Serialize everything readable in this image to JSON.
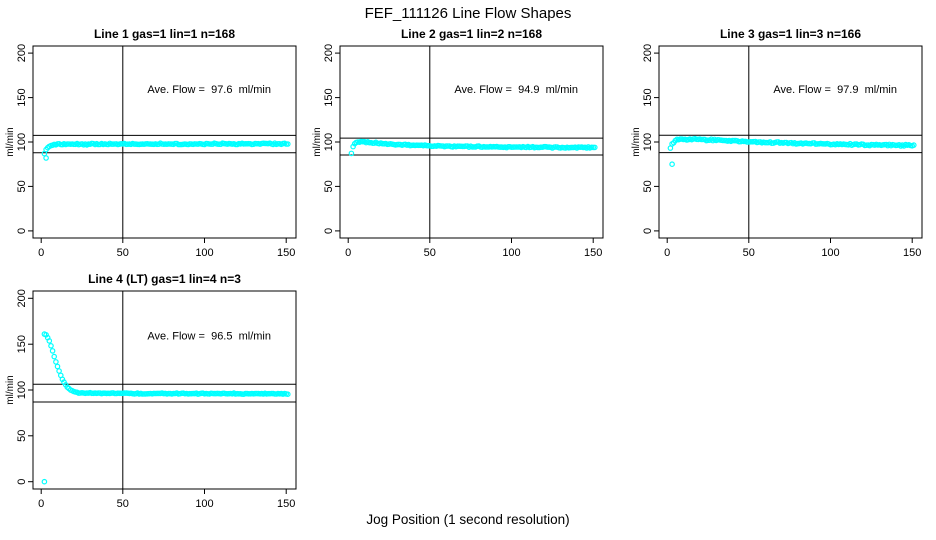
{
  "title": "FEF_111126  Line Flow Shapes",
  "xlabel": "Jog Position (1 second resolution)",
  "colors": {
    "points": "#00FFFF",
    "axis": "#000000",
    "background": "#FFFFFF"
  },
  "chart_data": [
    {
      "type": "scatter",
      "title": "Line 1 gas=1 lin=1 n=168",
      "annotation": "Ave. Flow =  97.6  ml/min",
      "avg_flow_ml_min": 97.6,
      "ylabel": "ml/min",
      "x_ticks": [
        0,
        50,
        100,
        150
      ],
      "y_ticks": [
        0,
        50,
        100,
        150,
        200
      ],
      "xlim": [
        -5,
        156
      ],
      "ylim": [
        -8,
        208
      ],
      "ref_lines_y": [
        107.4,
        87.8
      ],
      "ref_line_x": 50,
      "x_start": 2,
      "x_end": 151,
      "x_step": 1,
      "noise": 0.5,
      "profile": [
        [
          2,
          87.5
        ],
        [
          3,
          91
        ],
        [
          4,
          93.5
        ],
        [
          5,
          95
        ],
        [
          6,
          96
        ],
        [
          8,
          96.9
        ],
        [
          10,
          97.3
        ],
        [
          15,
          97.6
        ],
        [
          20,
          97.7
        ],
        [
          30,
          97.6
        ],
        [
          40,
          97.7
        ],
        [
          50,
          97.6
        ],
        [
          60,
          97.7
        ],
        [
          75,
          97.8
        ],
        [
          90,
          97.7
        ],
        [
          100,
          97.8
        ],
        [
          110,
          97.9
        ],
        [
          125,
          97.9
        ],
        [
          140,
          98
        ],
        [
          151,
          98
        ]
      ],
      "outliers": [
        [
          3,
          82
        ]
      ]
    },
    {
      "type": "scatter",
      "title": "Line 2 gas=1 lin=2 n=168",
      "annotation": "Ave. Flow =  94.9  ml/min",
      "avg_flow_ml_min": 94.9,
      "ylabel": "ml/min",
      "x_ticks": [
        0,
        50,
        100,
        150
      ],
      "y_ticks": [
        0,
        50,
        100,
        150,
        200
      ],
      "xlim": [
        -5,
        156
      ],
      "ylim": [
        -8,
        208
      ],
      "ref_lines_y": [
        104.4,
        85.4
      ],
      "ref_line_x": 50,
      "x_start": 2,
      "x_end": 151,
      "x_step": 1,
      "noise": 0.5,
      "profile": [
        [
          2,
          87
        ],
        [
          3,
          94.5
        ],
        [
          4,
          98
        ],
        [
          5,
          99.5
        ],
        [
          6,
          100.2
        ],
        [
          8,
          100.4
        ],
        [
          10,
          100.2
        ],
        [
          12,
          99.8
        ],
        [
          15,
          99.2
        ],
        [
          20,
          98.4
        ],
        [
          25,
          97.8
        ],
        [
          30,
          97.2
        ],
        [
          40,
          96.3
        ],
        [
          50,
          95.8
        ],
        [
          60,
          95.3
        ],
        [
          75,
          94.8
        ],
        [
          90,
          94.5
        ],
        [
          100,
          94.3
        ],
        [
          115,
          94.1
        ],
        [
          130,
          94
        ],
        [
          151,
          93.9
        ]
      ],
      "outliers": []
    },
    {
      "type": "scatter",
      "title": "Line 3 gas=1 lin=3 n=166",
      "annotation": "Ave. Flow =  97.9  ml/min",
      "avg_flow_ml_min": 97.9,
      "ylabel": "ml/min",
      "x_ticks": [
        0,
        50,
        100,
        150
      ],
      "y_ticks": [
        0,
        50,
        100,
        150,
        200
      ],
      "xlim": [
        -5,
        156
      ],
      "ylim": [
        -8,
        208
      ],
      "ref_lines_y": [
        107.7,
        88.1
      ],
      "ref_line_x": 50,
      "x_start": 2,
      "x_end": 151,
      "x_step": 1,
      "noise": 0.6,
      "profile": [
        [
          2,
          93
        ],
        [
          3,
          97.5
        ],
        [
          4,
          100
        ],
        [
          5,
          101.5
        ],
        [
          6,
          102.3
        ],
        [
          8,
          103
        ],
        [
          10,
          103.2
        ],
        [
          14,
          103.3
        ],
        [
          18,
          103.1
        ],
        [
          22,
          102.8
        ],
        [
          26,
          102.4
        ],
        [
          30,
          102
        ],
        [
          40,
          101.1
        ],
        [
          50,
          100.4
        ],
        [
          60,
          99.7
        ],
        [
          75,
          98.8
        ],
        [
          90,
          98.1
        ],
        [
          100,
          97.7
        ],
        [
          115,
          97.1
        ],
        [
          130,
          96.7
        ],
        [
          140,
          96.5
        ],
        [
          151,
          96.3
        ]
      ],
      "outliers": [
        [
          3,
          75
        ]
      ]
    },
    {
      "type": "scatter",
      "title": "Line 4 (LT) gas=1 lin=4 n=3",
      "annotation": "Ave. Flow =  96.5  ml/min",
      "avg_flow_ml_min": 96.5,
      "ylabel": "ml/min",
      "x_ticks": [
        0,
        50,
        100,
        150
      ],
      "y_ticks": [
        0,
        50,
        100,
        150,
        200
      ],
      "xlim": [
        -5,
        156
      ],
      "ylim": [
        -8,
        208
      ],
      "ref_lines_y": [
        106.2,
        86.9
      ],
      "ref_line_x": 50,
      "x_start": 2,
      "x_end": 151,
      "x_step": 1,
      "noise": 0.35,
      "profile": [
        [
          2,
          161
        ],
        [
          3,
          160
        ],
        [
          4,
          157.5
        ],
        [
          5,
          153.5
        ],
        [
          6,
          148.5
        ],
        [
          7,
          143
        ],
        [
          8,
          137
        ],
        [
          9,
          131
        ],
        [
          10,
          125.5
        ],
        [
          11,
          120.5
        ],
        [
          12,
          116
        ],
        [
          13,
          112
        ],
        [
          14,
          108.5
        ],
        [
          15,
          105.5
        ],
        [
          16,
          103.2
        ],
        [
          17,
          101.4
        ],
        [
          18,
          100
        ],
        [
          19,
          99
        ],
        [
          20,
          98.2
        ],
        [
          22,
          97.3
        ],
        [
          25,
          96.8
        ],
        [
          30,
          96.5
        ],
        [
          40,
          96.3
        ],
        [
          50,
          96.3
        ],
        [
          60,
          96.2
        ],
        [
          75,
          96.1
        ],
        [
          90,
          96.1
        ],
        [
          100,
          96
        ],
        [
          115,
          96
        ],
        [
          130,
          95.9
        ],
        [
          140,
          95.9
        ],
        [
          151,
          95.8
        ]
      ],
      "outliers": [
        [
          2,
          0
        ]
      ]
    }
  ]
}
